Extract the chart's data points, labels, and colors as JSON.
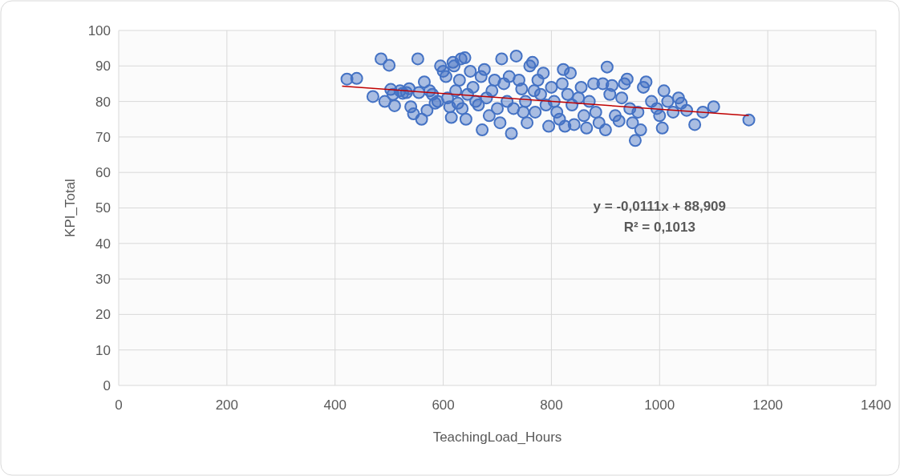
{
  "chart_data": {
    "type": "scatter",
    "xlabel": "TeachingLoad_Hours",
    "ylabel": "KPI_Total",
    "xlim": [
      0,
      1400
    ],
    "ylim": [
      0,
      100
    ],
    "xticks": [
      0,
      200,
      400,
      600,
      800,
      1000,
      1200,
      1400
    ],
    "yticks": [
      0,
      10,
      20,
      30,
      40,
      50,
      60,
      70,
      80,
      90,
      100
    ],
    "grid": true,
    "annotations": [
      "y = -0,0111x + 88,909",
      "R² = 0,1013"
    ],
    "series": [
      {
        "marker": "circle",
        "color": "#4472c4",
        "x": [
          422,
          440,
          470,
          485,
          492,
          500,
          503,
          507,
          510,
          520,
          525,
          532,
          537,
          540,
          545,
          553,
          555,
          560,
          565,
          570,
          575,
          580,
          585,
          590,
          595,
          600,
          605,
          608,
          612,
          615,
          618,
          620,
          623,
          627,
          630,
          633,
          635,
          640,
          642,
          645,
          650,
          655,
          660,
          665,
          670,
          672,
          676,
          680,
          685,
          690,
          695,
          700,
          705,
          708,
          712,
          718,
          722,
          726,
          730,
          735,
          740,
          745,
          748,
          752,
          755,
          760,
          765,
          768,
          770,
          775,
          780,
          785,
          790,
          795,
          800,
          805,
          810,
          815,
          820,
          822,
          825,
          830,
          835,
          838,
          842,
          850,
          855,
          860,
          865,
          870,
          878,
          882,
          888,
          895,
          900,
          903,
          908,
          912,
          918,
          925,
          930,
          935,
          940,
          945,
          950,
          955,
          960,
          965,
          970,
          975,
          985,
          995,
          1000,
          1005,
          1008,
          1015,
          1025,
          1035,
          1040,
          1050,
          1065,
          1080,
          1100,
          1165
        ],
        "values": [
          86.3,
          86.5,
          81.4,
          92,
          80,
          90.2,
          83.4,
          82,
          78.8,
          83,
          82.3,
          82.5,
          83.6,
          78.5,
          76.5,
          92,
          82.5,
          75,
          85.5,
          77.5,
          83,
          82,
          79.5,
          80,
          90,
          88.5,
          87,
          81,
          78.5,
          75.5,
          91,
          90,
          83,
          79.5,
          86,
          92,
          78,
          92.3,
          75,
          82,
          88.5,
          84,
          80,
          79,
          87,
          72,
          89,
          81,
          76,
          83,
          86,
          78,
          74,
          92,
          85,
          80,
          87,
          71,
          78,
          92.8,
          86,
          83.5,
          77,
          80,
          74,
          90,
          91,
          83,
          77,
          86,
          82,
          88,
          79,
          73,
          84,
          80,
          77,
          75,
          85,
          89,
          73,
          82,
          88,
          79,
          73.5,
          81,
          84,
          76,
          72.5,
          80,
          85,
          77,
          74,
          85,
          72,
          89.7,
          82,
          84.5,
          76,
          74.5,
          81,
          85,
          86.3,
          78,
          74,
          69,
          77,
          72,
          84,
          85.5,
          80,
          78,
          76,
          72.5,
          83,
          80,
          77,
          81,
          79.5,
          77.5,
          73.5,
          77,
          78.5,
          74.8
        ]
      },
      {
        "type": "line",
        "marker": "none",
        "color": "#c00000",
        "x": [
          413,
          1165
        ],
        "values": [
          84.3,
          76.0
        ]
      }
    ]
  }
}
